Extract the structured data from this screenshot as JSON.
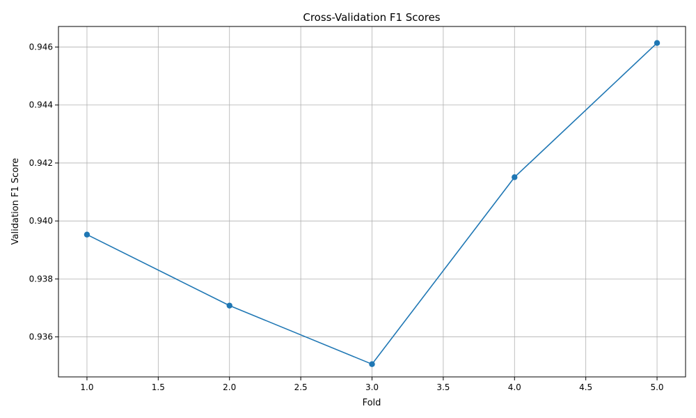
{
  "chart_data": {
    "type": "line",
    "title": "Cross-Validation F1 Scores",
    "xlabel": "Fold",
    "ylabel": "Validation F1 Score",
    "x": [
      1,
      2,
      3,
      4,
      5
    ],
    "series": [
      {
        "values": [
          0.93953,
          0.93708,
          0.93506,
          0.94151,
          0.94614
        ],
        "color": "#1f77b4",
        "marker": "circle"
      }
    ],
    "xlim": [
      0.8,
      5.2
    ],
    "ylim": [
      0.93462,
      0.94671
    ],
    "xticks": [
      1.0,
      1.5,
      2.0,
      2.5,
      3.0,
      3.5,
      4.0,
      4.5,
      5.0
    ],
    "xtick_labels": [
      "1.0",
      "1.5",
      "2.0",
      "2.5",
      "3.0",
      "3.5",
      "4.0",
      "4.5",
      "5.0"
    ],
    "yticks": [
      0.936,
      0.938,
      0.94,
      0.942,
      0.944,
      0.946
    ],
    "ytick_labels": [
      "0.936",
      "0.938",
      "0.940",
      "0.942",
      "0.944",
      "0.946"
    ],
    "grid": true,
    "legend": false
  }
}
